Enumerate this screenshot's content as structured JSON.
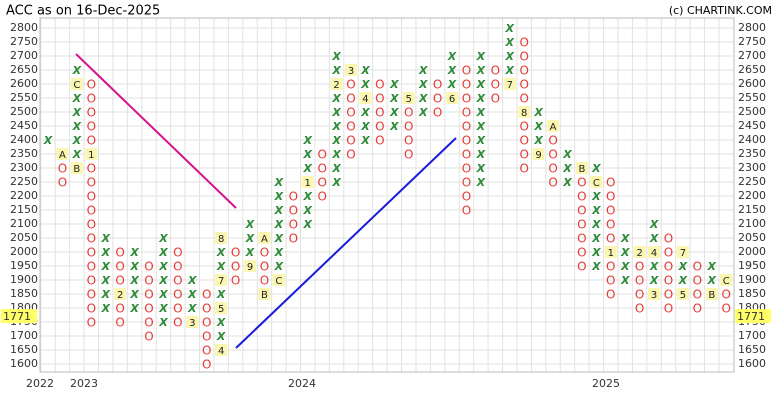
{
  "chart_data": {
    "type": "point_and_figure",
    "title": "ACC as on 16-Dec-2025",
    "credit": "(c) CHARTINK.COM",
    "ylim": [
      1575,
      2825
    ],
    "yticks": [
      1600,
      1650,
      1700,
      1750,
      1800,
      1850,
      1900,
      1950,
      2000,
      2050,
      2100,
      2150,
      2200,
      2250,
      2300,
      2350,
      2400,
      2450,
      2500,
      2550,
      2600,
      2650,
      2700,
      2750,
      2800
    ],
    "grid": true,
    "x_colors": "#2e8b3a",
    "o_colors": "#e53935",
    "last_price": 1771,
    "year_labels": [
      "2022",
      "2023",
      "2024",
      "2025"
    ],
    "columns": [
      {
        "type": "X",
        "low": 2400,
        "high": 2400,
        "months": []
      },
      {
        "type": "O",
        "low": 2250,
        "high": 2350,
        "months": [
          {
            "price": 2350,
            "label": "A"
          }
        ]
      },
      {
        "type": "X",
        "low": 2300,
        "high": 2650,
        "months": [
          {
            "price": 2300,
            "label": "B"
          },
          {
            "price": 2600,
            "label": "C"
          }
        ]
      },
      {
        "type": "O",
        "low": 1750,
        "high": 2600,
        "months": [
          {
            "price": 2350,
            "label": "1"
          }
        ]
      },
      {
        "type": "X",
        "low": 1800,
        "high": 2050,
        "months": []
      },
      {
        "type": "O",
        "low": 1750,
        "high": 2000,
        "months": [
          {
            "price": 1850,
            "label": "2"
          }
        ]
      },
      {
        "type": "X",
        "low": 1800,
        "high": 2000,
        "months": []
      },
      {
        "type": "O",
        "low": 1700,
        "high": 1950,
        "months": []
      },
      {
        "type": "X",
        "low": 1750,
        "high": 2050,
        "months": []
      },
      {
        "type": "O",
        "low": 1750,
        "high": 2000,
        "months": []
      },
      {
        "type": "X",
        "low": 1750,
        "high": 1900,
        "months": [
          {
            "price": 1750,
            "label": "3"
          }
        ]
      },
      {
        "type": "O",
        "low": 1600,
        "high": 1850,
        "months": []
      },
      {
        "type": "X",
        "low": 1650,
        "high": 2050,
        "months": [
          {
            "price": 1650,
            "label": "4"
          },
          {
            "price": 1800,
            "label": "5"
          },
          {
            "price": 1900,
            "label": "7"
          },
          {
            "price": 2050,
            "label": "8"
          }
        ]
      },
      {
        "type": "O",
        "low": 1900,
        "high": 2000,
        "months": []
      },
      {
        "type": "X",
        "low": 1950,
        "high": 2100,
        "months": [
          {
            "price": 1950,
            "label": "9"
          }
        ]
      },
      {
        "type": "O",
        "low": 1850,
        "high": 2050,
        "months": [
          {
            "price": 2050,
            "label": "A"
          },
          {
            "price": 1850,
            "label": "B"
          }
        ]
      },
      {
        "type": "X",
        "low": 1900,
        "high": 2250,
        "months": [
          {
            "price": 1900,
            "label": "C"
          }
        ]
      },
      {
        "type": "O",
        "low": 2050,
        "high": 2200,
        "months": []
      },
      {
        "type": "X",
        "low": 2100,
        "high": 2400,
        "months": [
          {
            "price": 2250,
            "label": "1"
          }
        ]
      },
      {
        "type": "O",
        "low": 2200,
        "high": 2350,
        "months": []
      },
      {
        "type": "X",
        "low": 2250,
        "high": 2700,
        "months": [
          {
            "price": 2600,
            "label": "2"
          }
        ]
      },
      {
        "type": "O",
        "low": 2350,
        "high": 2650,
        "months": [
          {
            "price": 2650,
            "label": "3"
          }
        ]
      },
      {
        "type": "X",
        "low": 2400,
        "high": 2650,
        "months": [
          {
            "price": 2550,
            "label": "4"
          }
        ]
      },
      {
        "type": "O",
        "low": 2400,
        "high": 2600,
        "months": []
      },
      {
        "type": "X",
        "low": 2450,
        "high": 2600,
        "months": []
      },
      {
        "type": "O",
        "low": 2350,
        "high": 2550,
        "months": [
          {
            "price": 2550,
            "label": "5"
          }
        ]
      },
      {
        "type": "X",
        "low": 2500,
        "high": 2650,
        "months": []
      },
      {
        "type": "O",
        "low": 2500,
        "high": 2600,
        "months": []
      },
      {
        "type": "X",
        "low": 2550,
        "high": 2700,
        "months": [
          {
            "price": 2550,
            "label": "6"
          }
        ]
      },
      {
        "type": "O",
        "low": 2150,
        "high": 2650,
        "months": []
      },
      {
        "type": "X",
        "low": 2250,
        "high": 2700,
        "months": []
      },
      {
        "type": "O",
        "low": 2550,
        "high": 2650,
        "months": []
      },
      {
        "type": "X",
        "low": 2600,
        "high": 2800,
        "months": [
          {
            "price": 2600,
            "label": "7"
          }
        ]
      },
      {
        "type": "O",
        "low": 2300,
        "high": 2750,
        "months": [
          {
            "price": 2500,
            "label": "8"
          }
        ]
      },
      {
        "type": "X",
        "low": 2350,
        "high": 2500,
        "months": [
          {
            "price": 2350,
            "label": "9"
          }
        ]
      },
      {
        "type": "O",
        "low": 2250,
        "high": 2450,
        "months": [
          {
            "price": 2450,
            "label": "A"
          }
        ]
      },
      {
        "type": "X",
        "low": 2250,
        "high": 2350,
        "months": []
      },
      {
        "type": "O",
        "low": 1950,
        "high": 2300,
        "months": [
          {
            "price": 2300,
            "label": "B"
          }
        ]
      },
      {
        "type": "X",
        "low": 1950,
        "high": 2300,
        "months": [
          {
            "price": 2250,
            "label": "C"
          }
        ]
      },
      {
        "type": "O",
        "low": 1850,
        "high": 2250,
        "months": [
          {
            "price": 2000,
            "label": "1"
          }
        ]
      },
      {
        "type": "X",
        "low": 1900,
        "high": 2050,
        "months": []
      },
      {
        "type": "O",
        "low": 1800,
        "high": 2000,
        "months": [
          {
            "price": 2000,
            "label": "2"
          }
        ]
      },
      {
        "type": "X",
        "low": 1850,
        "high": 2100,
        "months": [
          {
            "price": 1850,
            "label": "3"
          },
          {
            "price": 2000,
            "label": "4"
          }
        ]
      },
      {
        "type": "O",
        "low": 1800,
        "high": 2050,
        "months": []
      },
      {
        "type": "X",
        "low": 1850,
        "high": 2000,
        "months": [
          {
            "price": 1850,
            "label": "5"
          },
          {
            "price": 2000,
            "label": "7"
          }
        ]
      },
      {
        "type": "O",
        "low": 1800,
        "high": 1950,
        "months": []
      },
      {
        "type": "X",
        "low": 1850,
        "high": 1950,
        "months": [
          {
            "price": 1850,
            "label": "B"
          }
        ]
      },
      {
        "type": "O",
        "low": 1800,
        "high": 1900,
        "months": [
          {
            "price": 1900,
            "label": "C"
          }
        ]
      }
    ]
  }
}
